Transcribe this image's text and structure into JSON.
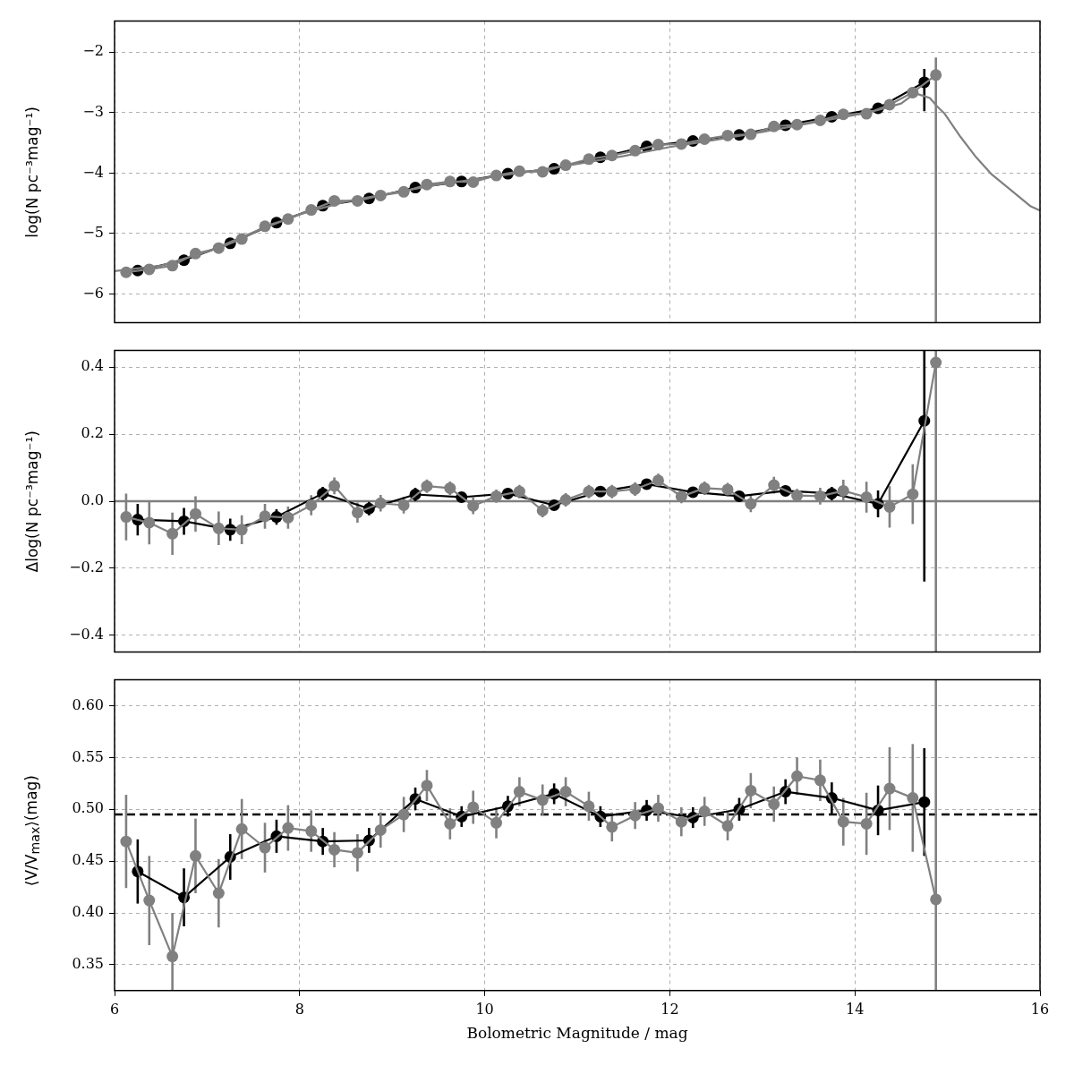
{
  "chart_data": [
    {
      "type": "line",
      "ylabel": "log(N pc⁻³mag⁻¹)",
      "xlim": [
        6,
        16
      ],
      "xticks": [
        6,
        8,
        10,
        12,
        14,
        16
      ],
      "ylim": [
        -6.47,
        -1.49
      ],
      "yticks": [
        {
          "value": -6,
          "label": "−6"
        },
        {
          "value": -5,
          "label": "−5"
        },
        {
          "value": -4,
          "label": "−4"
        },
        {
          "value": -3,
          "label": "−3"
        },
        {
          "value": -2,
          "label": "−2"
        }
      ],
      "grid": true,
      "tick_labels": "y",
      "marker": "circle",
      "series": [
        {
          "color": "#808080",
          "marker": "none",
          "x": [
            6,
            6.5,
            7,
            7.5,
            8,
            8.5,
            9,
            9.5,
            10,
            10.5,
            11,
            11.5,
            12,
            12.5,
            13,
            13.5,
            14,
            14.25,
            14.5,
            14.65,
            14.81,
            14.89,
            14.97,
            15.14,
            15.3,
            15.47,
            15.7,
            15.9,
            16
          ],
          "values": [
            -5.62,
            -5.53,
            -5.3,
            -4.98,
            -4.68,
            -4.47,
            -4.33,
            -4.19,
            -4.08,
            -3.97,
            -3.85,
            -3.72,
            -3.57,
            -3.45,
            -3.32,
            -3.18,
            -3.04,
            -2.96,
            -2.85,
            -2.68,
            -2.76,
            -2.9,
            -3.02,
            -3.4,
            -3.72,
            -4.01,
            -4.3,
            -4.55,
            -4.62
          ]
        },
        {
          "color": "#808080",
          "x": [
            6.125,
            6.375,
            6.625,
            6.875,
            7.125,
            7.375,
            7.625,
            7.875,
            8.125,
            8.375,
            8.625,
            8.875,
            9.125,
            9.375,
            9.625,
            9.875,
            10.125,
            10.375,
            10.625,
            10.875,
            11.125,
            11.375,
            11.625,
            11.875,
            12.125,
            12.375,
            12.625,
            12.875,
            13.125,
            13.375,
            13.625,
            13.875,
            14.125,
            14.375,
            14.625,
            14.875
          ],
          "values": [
            -5.64,
            -5.59,
            -5.53,
            -5.33,
            -5.24,
            -5.09,
            -4.88,
            -4.76,
            -4.61,
            -4.46,
            -4.46,
            -4.37,
            -4.31,
            -4.19,
            -4.14,
            -4.15,
            -4.04,
            -3.97,
            -3.98,
            -3.87,
            -3.77,
            -3.71,
            -3.63,
            -3.53,
            -3.52,
            -3.44,
            -3.38,
            -3.36,
            -3.23,
            -3.2,
            -3.13,
            -3.03,
            -3.02,
            -2.87,
            -2.67,
            -2.38
          ],
          "errors": [
            null,
            null,
            null,
            null,
            null,
            null,
            null,
            null,
            null,
            null,
            null,
            null,
            null,
            null,
            null,
            null,
            null,
            null,
            null,
            null,
            null,
            null,
            null,
            null,
            null,
            null,
            null,
            null,
            null,
            null,
            null,
            null,
            null,
            null,
            null,
            [
              -6.47,
              -2.09
            ]
          ]
        },
        {
          "color": "#000000",
          "x": [
            6.25,
            6.75,
            7.25,
            7.75,
            8.25,
            8.75,
            9.25,
            9.75,
            10.25,
            10.75,
            11.25,
            11.75,
            12.25,
            12.75,
            13.25,
            13.75,
            14.25,
            14.75
          ],
          "values": [
            -5.61,
            -5.44,
            -5.16,
            -4.82,
            -4.54,
            -4.42,
            -4.24,
            -4.14,
            -4.01,
            -3.93,
            -3.74,
            -3.56,
            -3.47,
            -3.37,
            -3.21,
            -3.07,
            -2.93,
            -2.5
          ],
          "errors": [
            null,
            null,
            null,
            null,
            null,
            null,
            null,
            null,
            null,
            null,
            null,
            null,
            null,
            null,
            null,
            null,
            null,
            [
              -2.98,
              -2.28
            ]
          ]
        }
      ]
    },
    {
      "type": "line",
      "ylabel": "Δlog(N pc⁻³mag⁻¹)",
      "xlim": [
        6,
        16
      ],
      "xticks": [
        6,
        8,
        10,
        12,
        14,
        16
      ],
      "ylim": [
        -0.45,
        0.45
      ],
      "yticks": [
        {
          "value": -0.4,
          "label": "−0.4"
        },
        {
          "value": -0.2,
          "label": "−0.2"
        },
        {
          "value": 0,
          "label": "0.0"
        },
        {
          "value": 0.2,
          "label": "0.2"
        },
        {
          "value": 0.4,
          "label": "0.4"
        }
      ],
      "grid": true,
      "tick_labels": "y",
      "marker": "circle",
      "ref_lines": [
        {
          "axis": "y",
          "value": 0,
          "color": "#808080",
          "line_style": "solid"
        }
      ],
      "series": [
        {
          "color": "#808080",
          "x": [
            6.125,
            6.375,
            6.625,
            6.875,
            7.125,
            7.375,
            7.625,
            7.875,
            8.125,
            8.375,
            8.625,
            8.875,
            9.125,
            9.375,
            9.625,
            9.875,
            10.125,
            10.375,
            10.625,
            10.875,
            11.125,
            11.375,
            11.625,
            11.875,
            12.125,
            12.375,
            12.625,
            12.875,
            13.125,
            13.375,
            13.625,
            13.875,
            14.125,
            14.375,
            14.625,
            14.875
          ],
          "values": [
            -0.047,
            -0.064,
            -0.097,
            -0.038,
            -0.081,
            -0.085,
            -0.045,
            -0.049,
            -0.012,
            0.046,
            -0.034,
            -0.006,
            -0.012,
            0.045,
            0.039,
            -0.014,
            0.015,
            0.029,
            -0.028,
            0.004,
            0.029,
            0.029,
            0.036,
            0.062,
            0.014,
            0.039,
            0.035,
            -0.008,
            0.048,
            0.017,
            0.015,
            0.031,
            0.012,
            -0.017,
            0.021,
            0.414
          ],
          "errors": [
            0.07,
            0.065,
            0.063,
            0.053,
            0.05,
            0.043,
            0.037,
            0.033,
            0.03,
            0.025,
            0.03,
            0.025,
            0.025,
            0.02,
            0.02,
            0.025,
            0.02,
            0.02,
            0.02,
            0.02,
            0.02,
            0.02,
            0.02,
            0.02,
            0.02,
            0.02,
            0.02,
            0.025,
            0.025,
            0.02,
            0.025,
            0.033,
            0.046,
            0.062,
            0.089,
            [
              -0.45,
              0.45
            ]
          ]
        },
        {
          "color": "#000000",
          "x": [
            6.25,
            6.75,
            7.25,
            7.75,
            8.25,
            8.75,
            9.25,
            9.75,
            10.25,
            10.75,
            11.25,
            11.75,
            12.25,
            12.75,
            13.25,
            13.75,
            14.25,
            14.75
          ],
          "values": [
            -0.055,
            -0.06,
            -0.085,
            -0.047,
            0.023,
            -0.022,
            0.02,
            0.012,
            0.023,
            -0.012,
            0.029,
            0.051,
            0.027,
            0.015,
            0.031,
            0.023,
            -0.008,
            0.24
          ],
          "errors": [
            0.047,
            0.04,
            0.033,
            0.023,
            0.02,
            0.02,
            0.02,
            0.015,
            0.015,
            0.015,
            0.015,
            0.015,
            0.015,
            0.015,
            0.015,
            0.02,
            0.04,
            [
              -0.24,
              0.45
            ]
          ]
        }
      ]
    },
    {
      "type": "line",
      "xlabel": "Bolometric Magnitude / mag",
      "ylabel": "⟨V/V$_{max}$⟩(mag)",
      "xlim": [
        6,
        16
      ],
      "xticks": [
        6,
        8,
        10,
        12,
        14,
        16
      ],
      "ylim": [
        0.325,
        0.625
      ],
      "yticks": [
        {
          "value": 0.35,
          "label": "0.35"
        },
        {
          "value": 0.4,
          "label": "0.40"
        },
        {
          "value": 0.45,
          "label": "0.45"
        },
        {
          "value": 0.5,
          "label": "0.50"
        },
        {
          "value": 0.55,
          "label": "0.55"
        },
        {
          "value": 0.6,
          "label": "0.60"
        }
      ],
      "grid": true,
      "marker": "circle",
      "ref_lines": [
        {
          "axis": "y",
          "value": 0.495,
          "color": "#000000",
          "line_style": "dashed"
        }
      ],
      "series": [
        {
          "color": "#808080",
          "x": [
            6.125,
            6.375,
            6.625,
            6.875,
            7.125,
            7.375,
            7.625,
            7.875,
            8.125,
            8.375,
            8.625,
            8.875,
            9.125,
            9.375,
            9.625,
            9.875,
            10.125,
            10.375,
            10.625,
            10.875,
            11.125,
            11.375,
            11.625,
            11.875,
            12.125,
            12.375,
            12.625,
            12.875,
            13.125,
            13.375,
            13.625,
            13.875,
            14.125,
            14.375,
            14.625,
            14.875
          ],
          "values": [
            0.469,
            0.412,
            0.358,
            0.455,
            0.419,
            0.481,
            0.463,
            0.482,
            0.479,
            0.461,
            0.458,
            0.48,
            0.495,
            0.523,
            0.486,
            0.502,
            0.487,
            0.517,
            0.509,
            0.517,
            0.503,
            0.483,
            0.494,
            0.501,
            0.488,
            0.498,
            0.484,
            0.518,
            0.505,
            0.532,
            0.528,
            0.488,
            0.486,
            0.52,
            0.511,
            0.413
          ],
          "errors": [
            0.045,
            0.043,
            [
              0.325,
              0.4
            ],
            0.036,
            0.033,
            0.029,
            0.024,
            0.022,
            0.02,
            0.017,
            0.018,
            0.017,
            0.017,
            0.015,
            0.015,
            0.016,
            0.015,
            0.014,
            0.015,
            0.014,
            0.014,
            0.014,
            0.013,
            0.013,
            0.014,
            0.014,
            0.014,
            0.017,
            0.017,
            0.018,
            0.02,
            0.023,
            0.03,
            0.04,
            0.052,
            [
              0.325,
              0.625
            ]
          ]
        },
        {
          "color": "#000000",
          "x": [
            6.25,
            6.75,
            7.25,
            7.75,
            8.25,
            8.75,
            9.25,
            9.75,
            10.25,
            10.75,
            11.25,
            11.75,
            12.25,
            12.75,
            13.25,
            13.75,
            14.25,
            14.75
          ],
          "values": [
            0.44,
            0.415,
            0.454,
            0.474,
            0.469,
            0.47,
            0.51,
            0.493,
            0.503,
            0.515,
            0.493,
            0.499,
            0.492,
            0.5,
            0.517,
            0.511,
            0.499,
            0.507
          ],
          "errors": [
            0.031,
            0.028,
            0.022,
            0.016,
            0.013,
            0.012,
            0.011,
            0.01,
            0.01,
            0.01,
            0.01,
            0.01,
            0.01,
            0.011,
            0.012,
            0.015,
            0.024,
            0.052
          ]
        }
      ]
    }
  ]
}
